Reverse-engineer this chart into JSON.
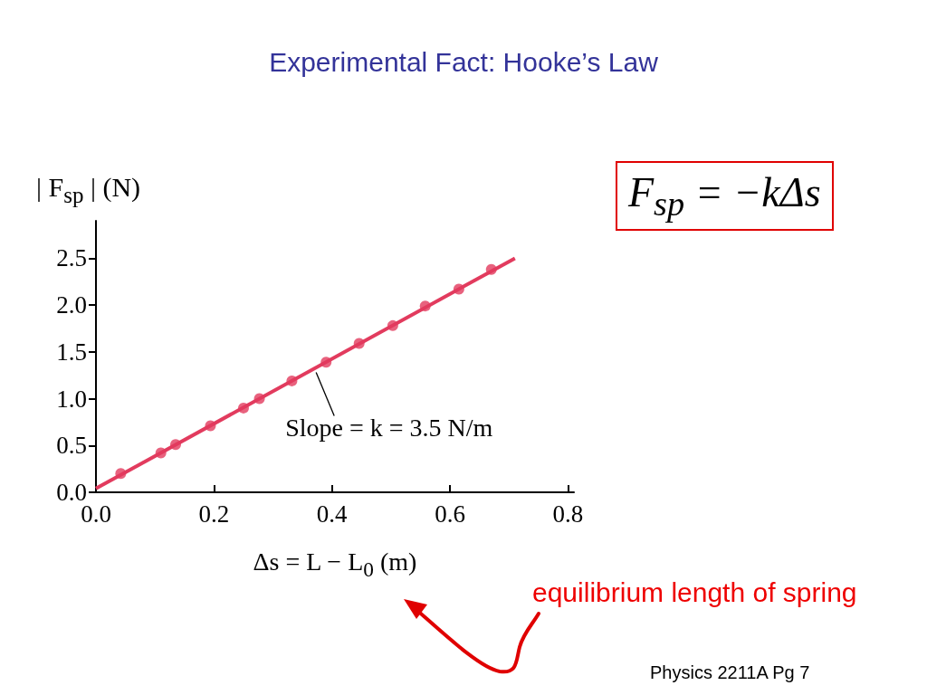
{
  "chart_data": {
    "type": "scatter",
    "title": "Experimental Fact: Hooke’s Law",
    "xlabel": "Δs = L − L$_{0}$ (m)",
    "ylabel": "| F$_{sp}$ | (N)",
    "xlim": [
      0,
      0.81
    ],
    "ylim": [
      0,
      2.9
    ],
    "xticks": [
      {
        "value": 0,
        "label": "0.0"
      },
      0.2,
      0.4,
      0.6,
      0.8
    ],
    "yticks": [
      {
        "value": 0,
        "label": "0.0"
      },
      0.5,
      {
        "value": 1,
        "label": "1.0"
      },
      1.5,
      {
        "value": 2,
        "label": "2.0"
      },
      2.5
    ],
    "grid": false,
    "series": [
      {
        "marker": "circle",
        "color": "#e23b5e",
        "x": [
          0.042,
          0.11,
          0.135,
          0.194,
          0.25,
          0.277,
          0.332,
          0.39,
          0.446,
          0.503,
          0.558,
          0.615,
          0.67
        ],
        "values": [
          0.2,
          0.42,
          0.51,
          0.71,
          0.9,
          1.0,
          1.19,
          1.39,
          1.59,
          1.78,
          1.99,
          2.17,
          2.38
        ]
      },
      {
        "type": "line",
        "color": "#e23b5e",
        "x": [
          0,
          0.71
        ],
        "values": [
          0.04,
          2.5
        ],
        "line_style": "solid"
      }
    ],
    "annotations": [
      {
        "text": "Slope = k = 3.5 N/m",
        "x": 0.37,
        "y": 1.32
      },
      "F$_{sp}$ = −kΔs",
      "equilibrium length of spring",
      "Physics 2211A Pg 7"
    ]
  }
}
